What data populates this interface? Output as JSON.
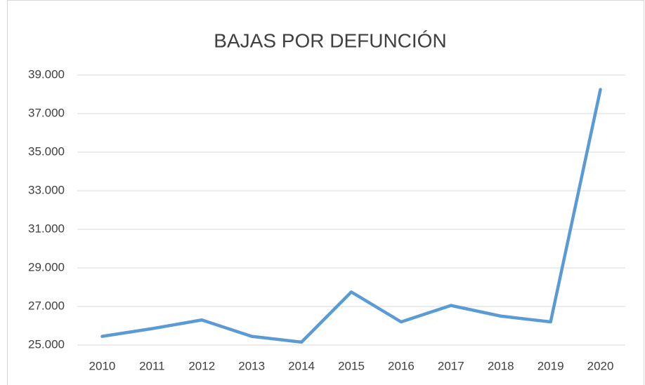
{
  "chart_data": {
    "type": "line",
    "title": "BAJAS POR DEFUNCIÓN",
    "categories": [
      "2010",
      "2011",
      "2012",
      "2013",
      "2014",
      "2015",
      "2016",
      "2017",
      "2018",
      "2019",
      "2020"
    ],
    "series": [
      {
        "name": "Bajas por defunción",
        "color": "#5b9bd5",
        "values": [
          25450,
          25850,
          26300,
          25450,
          25150,
          27750,
          26200,
          27050,
          26500,
          26200,
          38250
        ]
      }
    ],
    "ylim": [
      25000,
      39000
    ],
    "yticks": [
      {
        "value": 25000,
        "label": "25.000"
      },
      {
        "value": 27000,
        "label": "27.000"
      },
      {
        "value": 29000,
        "label": "29.000"
      },
      {
        "value": 31000,
        "label": "31.000"
      },
      {
        "value": 33000,
        "label": "33.000"
      },
      {
        "value": 35000,
        "label": "35.000"
      },
      {
        "value": 37000,
        "label": "37.000"
      },
      {
        "value": 39000,
        "label": "39.000"
      }
    ],
    "grid": true
  }
}
